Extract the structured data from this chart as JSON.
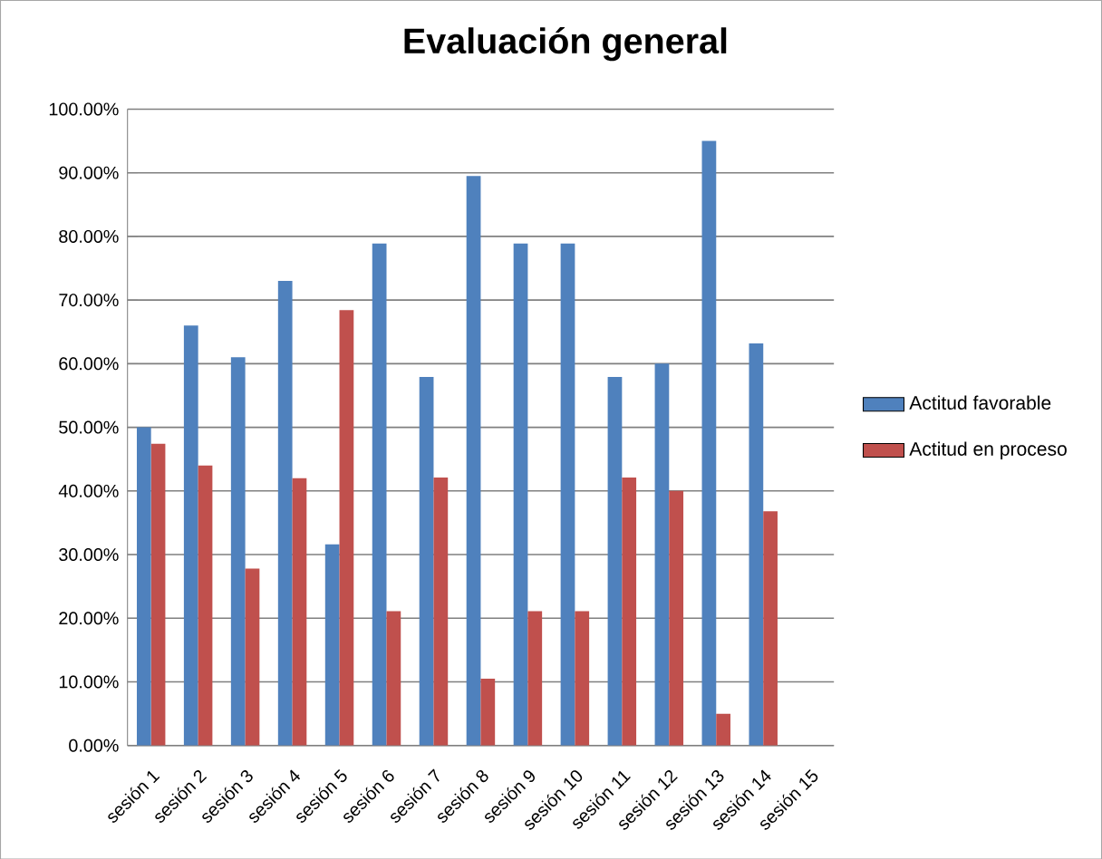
{
  "chart_data": {
    "type": "bar",
    "title": "Evaluación  general",
    "categories": [
      "sesión 1",
      "sesión 2",
      "sesión 3",
      "sesión 4",
      "sesión 5",
      "sesión 6",
      "sesión 7",
      "sesión 8",
      "sesión 9",
      "sesión 10",
      "sesión 11",
      "sesión 12",
      "sesión 13",
      "sesión 14",
      "sesión 15"
    ],
    "series": [
      {
        "name": "Actitud favorable",
        "color": "#4f81bd",
        "values": [
          50,
          66,
          61,
          73,
          31.6,
          78.9,
          57.9,
          89.5,
          78.9,
          78.9,
          57.9,
          60,
          95,
          63.2,
          null
        ]
      },
      {
        "name": "Actitud en proceso",
        "color": "#c0504d",
        "values": [
          47.4,
          44,
          27.8,
          42,
          68.4,
          21.1,
          42.1,
          10.5,
          21.1,
          21.1,
          42.1,
          40,
          5,
          36.8,
          null
        ]
      }
    ],
    "ylim": [
      0,
      100
    ],
    "yticks": [
      {
        "value": 0,
        "label": "0.00%"
      },
      {
        "value": 10,
        "label": "10.00%"
      },
      {
        "value": 20,
        "label": "20.00%"
      },
      {
        "value": 30,
        "label": "30.00%"
      },
      {
        "value": 40,
        "label": "40.00%"
      },
      {
        "value": 50,
        "label": "50.00%"
      },
      {
        "value": 60,
        "label": "60.00%"
      },
      {
        "value": 70,
        "label": "70.00%"
      },
      {
        "value": 80,
        "label": "80.00%"
      },
      {
        "value": 90,
        "label": "90.00%"
      },
      {
        "value": 100,
        "label": "100.00%"
      }
    ],
    "grid": "y",
    "legend": "right"
  }
}
